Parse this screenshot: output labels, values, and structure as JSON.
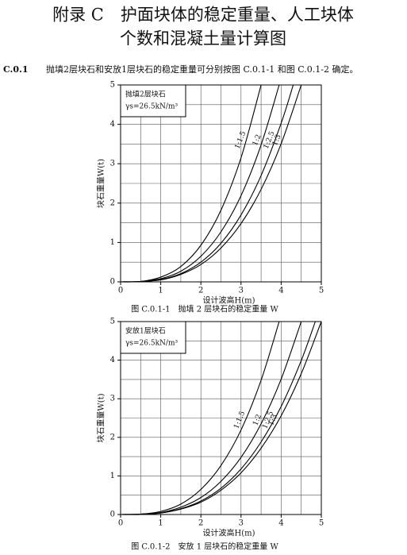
{
  "title_lines": [
    "附录 C　护面块体的稳定重量、人工块体",
    "个数和混凝土量计算图"
  ],
  "paragraph": {
    "number": "C.0.1",
    "text": "抛填2层块石和安放1层块石的稳定重量可分别按图 C.0.1-1 和图 C.0.1-2 确定。"
  },
  "chart_data": [
    {
      "type": "line",
      "caption": "图 C.0.1-1　抛填 2 层块石的稳定重量 W",
      "annotation": [
        "抛填2层块石",
        "γs=26.5kN/m³"
      ],
      "xlabel": "设计波高H(m)",
      "ylabel": "块石重量W(t)",
      "xlim": [
        0,
        5
      ],
      "ylim": [
        0,
        5
      ],
      "xticks": [
        0,
        1,
        2,
        3,
        4,
        5
      ],
      "yticks": [
        0,
        1,
        2,
        3,
        4,
        5
      ],
      "minor_grid": 0.5,
      "color": "#000000",
      "series": [
        {
          "name": "1:1.5",
          "x": [
            0,
            0.5,
            1,
            1.5,
            2,
            2.5,
            3,
            3.5
          ],
          "values": [
            0,
            0.01,
            0.12,
            0.39,
            0.93,
            1.82,
            3.15,
            5.0
          ]
        },
        {
          "name": "1:2",
          "x": [
            0,
            0.5,
            1,
            1.5,
            2,
            2.5,
            3,
            3.5,
            3.95
          ],
          "values": [
            0,
            0.01,
            0.08,
            0.27,
            0.65,
            1.27,
            2.19,
            3.48,
            5.0
          ]
        },
        {
          "name": "1:2.5",
          "x": [
            0,
            0.5,
            1,
            1.5,
            2,
            2.5,
            3,
            3.5,
            4,
            4.3
          ],
          "values": [
            0,
            0.01,
            0.06,
            0.21,
            0.5,
            0.98,
            1.7,
            2.7,
            4.03,
            5.0
          ]
        },
        {
          "name": "1:3",
          "x": [
            0,
            0.5,
            1,
            1.5,
            2,
            2.5,
            3,
            3.5,
            4,
            4.5
          ],
          "values": [
            0,
            0.01,
            0.05,
            0.19,
            0.44,
            0.86,
            1.48,
            2.35,
            3.51,
            5.0
          ]
        }
      ]
    },
    {
      "type": "line",
      "caption": "图 C.0.1-2　安放 1 层块石的稳定重量 W",
      "annotation": [
        "安放1层块石",
        "γs=26.5kN/m³"
      ],
      "xlabel": "设计波高H(m)",
      "ylabel": "块石重量W(t)",
      "xlim": [
        0,
        5
      ],
      "ylim": [
        0,
        5
      ],
      "xticks": [
        0,
        1,
        2,
        3,
        4,
        5
      ],
      "yticks": [
        0,
        1,
        2,
        3,
        4,
        5
      ],
      "minor_grid": 0.5,
      "color": "#000000",
      "series": [
        {
          "name": "1:1.5",
          "x": [
            0,
            0.5,
            1,
            1.5,
            2,
            2.5,
            3,
            3.5,
            3.95
          ],
          "values": [
            0,
            0.01,
            0.08,
            0.27,
            0.65,
            1.27,
            2.19,
            3.48,
            5.0
          ]
        },
        {
          "name": "1:2",
          "x": [
            0,
            0.5,
            1,
            1.5,
            2,
            2.5,
            3,
            3.5,
            4,
            4.5
          ],
          "values": [
            0,
            0.01,
            0.05,
            0.19,
            0.44,
            0.86,
            1.48,
            2.35,
            3.51,
            5.0
          ]
        },
        {
          "name": "1:2.5",
          "x": [
            0,
            0.5,
            1,
            1.5,
            2,
            2.5,
            3,
            3.5,
            4,
            4.5,
            4.85
          ],
          "values": [
            0,
            0.01,
            0.04,
            0.15,
            0.35,
            0.68,
            1.18,
            1.88,
            2.8,
            3.99,
            5.0
          ]
        },
        {
          "name": "1:3",
          "x": [
            0,
            0.5,
            1,
            1.5,
            2,
            2.5,
            3,
            3.5,
            4,
            4.5,
            5
          ],
          "values": [
            0,
            0,
            0.04,
            0.14,
            0.32,
            0.63,
            1.08,
            1.72,
            2.56,
            3.65,
            5.0
          ]
        }
      ]
    }
  ]
}
